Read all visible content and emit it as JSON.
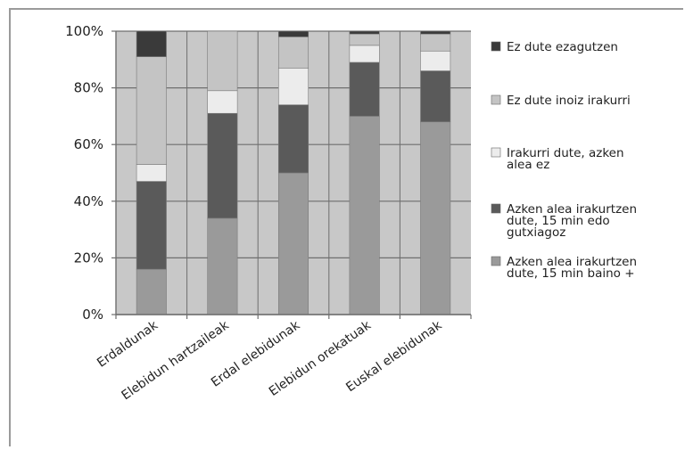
{
  "chart_data": {
    "type": "bar",
    "stacked": true,
    "title": "",
    "xlabel": "",
    "ylabel": "",
    "ylim": [
      0,
      100
    ],
    "y_ticks": [
      "0%",
      "20%",
      "40%",
      "60%",
      "80%",
      "100%"
    ],
    "grid": true,
    "legend_position": "right",
    "categories": [
      "Erdaldunak",
      "Elebidun hartzaileak",
      "Erdal elebidunak",
      "Elebidun orekatuak",
      "Euskal elebidunak"
    ],
    "series": [
      {
        "name": "Azken alea irakurtzen dute, 15 min baino +",
        "color": "#9a9a9a",
        "values": [
          16,
          34,
          50,
          70,
          68
        ]
      },
      {
        "name": "Azken alea irakurtzen dute, 15 min edo gutxiagoz",
        "color": "#5a5a5a",
        "values": [
          31,
          37,
          24,
          19,
          18
        ]
      },
      {
        "name": "Irakurri dute, azken alea ez",
        "color": "#ececec",
        "values": [
          6,
          8,
          13,
          6,
          7
        ]
      },
      {
        "name": "Ez dute inoiz irakurri",
        "color": "#c4c4c4",
        "values": [
          38,
          21,
          11,
          4,
          6
        ]
      },
      {
        "name": "Ez dute ezagutzen",
        "color": "#3a3a3a",
        "values": [
          9,
          0,
          2,
          1,
          1
        ]
      }
    ],
    "legend_order": [
      4,
      3,
      2,
      1,
      0
    ],
    "legend_lines": [
      [
        "Ez dute ezagutzen"
      ],
      [
        "Ez dute inoiz irakurri"
      ],
      [
        "Irakurri dute, azken",
        "alea ez"
      ],
      [
        "Azken alea irakurtzen",
        "dute, 15 min edo",
        "gutxiagoz"
      ],
      [
        "Azken alea irakurtzen",
        "dute, 15 min baino +"
      ]
    ],
    "colors": {
      "plot_bg": "#c8c8c8",
      "grid": "#6e6e6e",
      "axis": "#6e6e6e"
    }
  }
}
